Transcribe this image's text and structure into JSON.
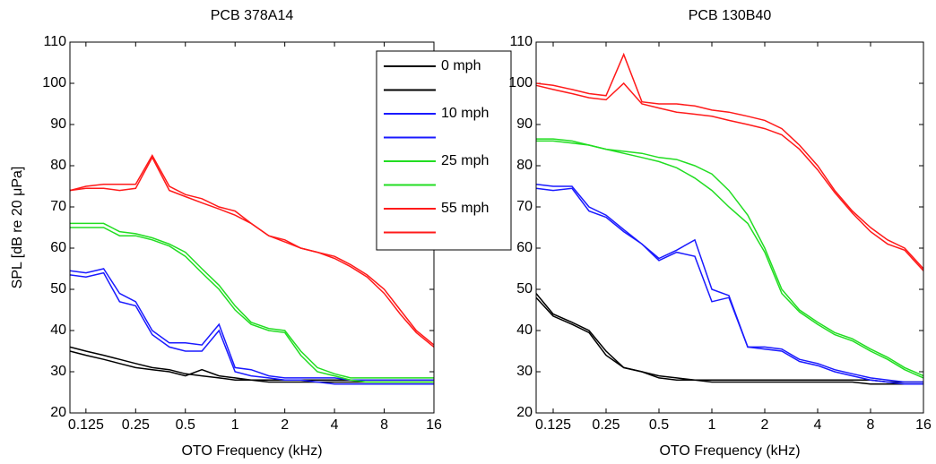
{
  "chart_data": [
    {
      "type": "line",
      "title": "PCB 378A14",
      "xlabel": "OTO Frequency (kHz)",
      "ylabel": "SPL [dB re 20 μPa]",
      "log_x": true,
      "legend": "upper right",
      "xlim": [
        0.1,
        16
      ],
      "ylim": [
        20,
        110
      ],
      "xticks": [
        0.125,
        0.25,
        0.5,
        1,
        2,
        4,
        8,
        16
      ],
      "yticks": [
        20,
        30,
        40,
        50,
        60,
        70,
        80,
        90,
        100,
        110
      ],
      "x": [
        0.1,
        0.125,
        0.16,
        0.2,
        0.25,
        0.315,
        0.4,
        0.5,
        0.63,
        0.8,
        1,
        1.25,
        1.6,
        2,
        2.5,
        3.15,
        4,
        5,
        6.3,
        8,
        10,
        12.5,
        16
      ],
      "series": [
        {
          "name": "0 mph",
          "color": "#000000",
          "values": [
            36,
            35,
            34,
            33,
            32,
            31,
            30.5,
            29.5,
            29,
            28.5,
            28,
            28,
            27.5,
            27.5,
            27.5,
            27.5,
            27.5,
            27.5,
            27.5,
            27.5,
            27.5,
            27.5,
            27.5
          ]
        },
        {
          "color": "#000000",
          "values": [
            35,
            34,
            33,
            32,
            31,
            30.5,
            30,
            29,
            30.5,
            29,
            28.5,
            28,
            28,
            28,
            28,
            28,
            28,
            28,
            28,
            28,
            28,
            28,
            28
          ]
        },
        {
          "name": "10 mph",
          "color": "#1a1aff",
          "values": [
            54.5,
            54,
            55,
            49,
            47,
            40,
            37,
            37,
            36.5,
            41.5,
            31,
            30.5,
            29,
            28.5,
            28.5,
            28.5,
            28.5,
            28,
            28,
            28,
            28,
            28,
            28
          ]
        },
        {
          "color": "#1a1aff",
          "values": [
            53.5,
            53,
            54,
            47,
            46,
            39,
            36,
            35,
            35,
            40,
            30,
            29,
            28.5,
            28,
            28,
            27.5,
            27,
            27,
            27,
            27,
            27,
            27,
            27
          ]
        },
        {
          "name": "25 mph",
          "color": "#22dd22",
          "values": [
            66,
            66,
            66,
            64,
            63.5,
            62.5,
            61,
            59,
            55,
            51,
            46,
            42,
            40.5,
            40,
            35,
            31,
            29.5,
            28.5,
            28.5,
            28.5,
            28.5,
            28.5,
            28.5
          ]
        },
        {
          "color": "#22dd22",
          "values": [
            65,
            65,
            65,
            63,
            63,
            62,
            60.5,
            58,
            54,
            50,
            45,
            41.5,
            40,
            39.5,
            34,
            30,
            29,
            28,
            27.5,
            27.5,
            27.5,
            27.5,
            27.5
          ]
        },
        {
          "name": "55 mph",
          "color": "#ff1a1a",
          "values": [
            74,
            75,
            75.5,
            75.5,
            75.5,
            82.5,
            75,
            73,
            72,
            70,
            69,
            66,
            63,
            62,
            60,
            59,
            58,
            56,
            53.5,
            50,
            45,
            40,
            36.5
          ]
        },
        {
          "color": "#ff1a1a",
          "values": [
            74,
            74.5,
            74.5,
            74,
            74.5,
            82,
            74,
            72.5,
            71,
            69.5,
            68,
            66,
            63,
            61.5,
            60,
            59,
            57.5,
            55.5,
            53,
            49,
            44,
            39.5,
            36
          ]
        }
      ]
    },
    {
      "type": "line",
      "title": "PCB 130B40",
      "xlabel": "OTO Frequency (kHz)",
      "log_x": true,
      "xlim": [
        0.1,
        16
      ],
      "ylim": [
        20,
        110
      ],
      "xticks": [
        0.125,
        0.25,
        0.5,
        1,
        2,
        4,
        8,
        16
      ],
      "yticks": [
        20,
        30,
        40,
        50,
        60,
        70,
        80,
        90,
        100,
        110
      ],
      "x": [
        0.1,
        0.125,
        0.16,
        0.2,
        0.25,
        0.315,
        0.4,
        0.5,
        0.63,
        0.8,
        1,
        1.25,
        1.6,
        2,
        2.5,
        3.15,
        4,
        5,
        6.3,
        8,
        10,
        12.5,
        16
      ],
      "series": [
        {
          "color": "#000000",
          "values": [
            49,
            44,
            42,
            40,
            35,
            31,
            30,
            28.5,
            28,
            28,
            28,
            28,
            28,
            28,
            28,
            28,
            28,
            28,
            28,
            28,
            27.5,
            27.5,
            27.5
          ]
        },
        {
          "color": "#000000",
          "values": [
            48,
            43.5,
            41.5,
            39.5,
            34,
            31,
            30,
            29,
            28.5,
            28,
            27.5,
            27.5,
            27.5,
            27.5,
            27.5,
            27.5,
            27.5,
            27.5,
            27.5,
            27,
            27,
            27,
            27
          ]
        },
        {
          "color": "#1a1aff",
          "values": [
            75.5,
            75,
            75,
            70,
            68,
            64.5,
            61,
            57.5,
            59.5,
            62,
            50,
            48.5,
            36,
            36,
            35.5,
            33,
            32,
            30.5,
            29.5,
            28.5,
            28,
            27.5,
            27.5
          ]
        },
        {
          "color": "#1a1aff",
          "values": [
            74.5,
            74,
            74.5,
            69,
            67.5,
            64,
            61,
            57,
            59,
            58,
            47,
            48,
            36,
            35.5,
            35,
            32.5,
            31.5,
            30,
            29,
            28,
            27.5,
            27,
            27
          ]
        },
        {
          "color": "#22dd22",
          "values": [
            86.5,
            86.5,
            86,
            85,
            84,
            83.5,
            83,
            82,
            81.5,
            80,
            78,
            74,
            68,
            60,
            50,
            45,
            42,
            39.5,
            38,
            35.5,
            33.5,
            31,
            29
          ]
        },
        {
          "color": "#22dd22",
          "values": [
            86,
            86,
            85.5,
            85,
            84,
            83,
            82,
            81,
            79.5,
            77,
            74,
            70,
            66,
            59,
            49,
            44.5,
            41.5,
            39,
            37.5,
            35,
            33,
            30.5,
            28.5
          ]
        },
        {
          "color": "#ff1a1a",
          "values": [
            100,
            99.5,
            98.5,
            97.5,
            97,
            107,
            95.5,
            95,
            95,
            94.5,
            93.5,
            93,
            92,
            91,
            89,
            85,
            80,
            74,
            69,
            65,
            62,
            60,
            55
          ]
        },
        {
          "color": "#ff1a1a",
          "values": [
            99.5,
            98.5,
            97.5,
            96.5,
            96,
            100,
            95,
            94,
            93,
            92.5,
            92,
            91,
            90,
            89,
            87.5,
            84,
            79,
            73.5,
            68.5,
            64,
            61,
            59.5,
            54.5
          ]
        }
      ]
    }
  ]
}
